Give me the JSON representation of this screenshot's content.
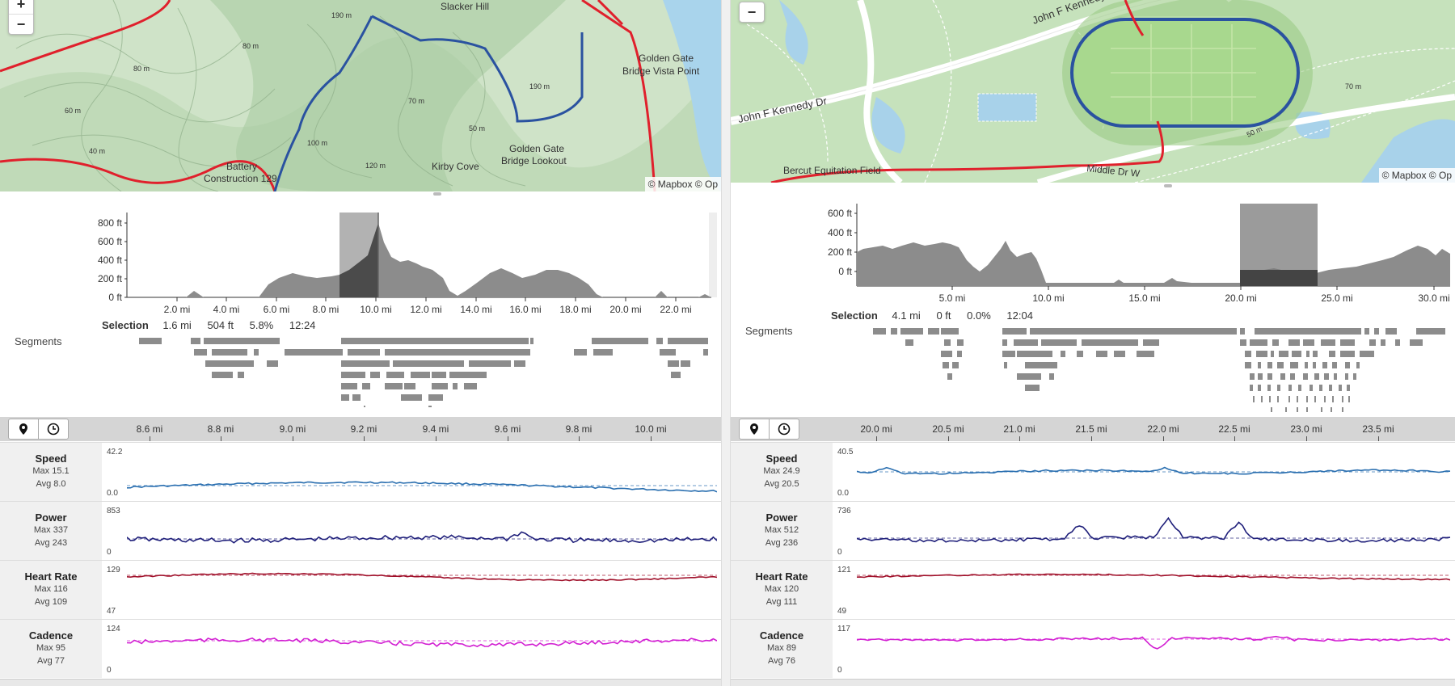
{
  "left": {
    "map": {
      "zoom_in": "+",
      "zoom_out": "−",
      "labels": [
        "Slacker Hill",
        "Golden Gate",
        "Bridge Vista Point",
        "Golden Gate",
        "Bridge Lookout",
        "Kirby Cove",
        "Battery",
        "Construction 129"
      ],
      "contours": [
        "190 m",
        "80 m",
        "60 m",
        "120 m",
        "190 m",
        "70 m",
        "50 m",
        "40 m",
        "80 m",
        "100 m"
      ],
      "attribution": "© Mapbox © Op"
    },
    "elevation": {
      "y_ticks": [
        "800 ft",
        "600 ft",
        "400 ft",
        "200 ft",
        "0 ft"
      ],
      "x_ticks": [
        "2.0 mi",
        "4.0 mi",
        "6.0 mi",
        "8.0 mi",
        "10.0 mi",
        "12.0 mi",
        "14.0 mi",
        "16.0 mi",
        "18.0 mi",
        "20.0 mi",
        "22.0 mi"
      ]
    },
    "selection": {
      "label": "Selection",
      "distance": "1.6 mi",
      "elevation": "504 ft",
      "grade": "5.8%",
      "time": "12:24"
    },
    "segments_label": "Segments",
    "streams_axis": [
      "8.6 mi",
      "8.8 mi",
      "9.0 mi",
      "9.2 mi",
      "9.4 mi",
      "9.6 mi",
      "9.8 mi",
      "10.0 mi"
    ],
    "streams": [
      {
        "name": "Speed",
        "max": "Max 15.1",
        "avg": "Avg 8.0",
        "top": "42.2",
        "bottom": "0.0",
        "color": "#2a6fb0"
      },
      {
        "name": "Power",
        "max": "Max 337",
        "avg": "Avg 243",
        "top": "853",
        "bottom": "0",
        "color": "#1f1f7a"
      },
      {
        "name": "Heart Rate",
        "max": "Max 116",
        "avg": "Avg 109",
        "top": "129",
        "bottom": "47",
        "color": "#a0102a"
      },
      {
        "name": "Cadence",
        "max": "Max 95",
        "avg": "Avg 77",
        "top": "124",
        "bottom": "0",
        "color": "#d21ed2"
      }
    ]
  },
  "right": {
    "map": {
      "zoom_out": "−",
      "labels": [
        "John F Kennedy Dr",
        "John F Kennedy Dr",
        "Bercut Equitation Field",
        "Middle Dr W"
      ],
      "contours": [
        "50 m",
        "70 m"
      ],
      "attribution": "© Mapbox © Op"
    },
    "elevation": {
      "y_ticks": [
        "600 ft",
        "400 ft",
        "200 ft",
        "0 ft"
      ],
      "x_ticks": [
        "5.0 mi",
        "10.0 mi",
        "15.0 mi",
        "20.0 mi",
        "25.0 mi",
        "30.0 mi"
      ]
    },
    "selection": {
      "label": "Selection",
      "distance": "4.1 mi",
      "elevation": "0 ft",
      "grade": "0.0%",
      "time": "12:04"
    },
    "segments_label": "Segments",
    "streams_axis": [
      "20.0 mi",
      "20.5 mi",
      "21.0 mi",
      "21.5 mi",
      "22.0 mi",
      "22.5 mi",
      "23.0 mi",
      "23.5 mi"
    ],
    "streams": [
      {
        "name": "Speed",
        "max": "Max 24.9",
        "avg": "Avg 20.5",
        "top": "40.5",
        "bottom": "0.0",
        "color": "#2a6fb0"
      },
      {
        "name": "Power",
        "max": "Max 512",
        "avg": "Avg 236",
        "top": "736",
        "bottom": "0",
        "color": "#1f1f7a"
      },
      {
        "name": "Heart Rate",
        "max": "Max 120",
        "avg": "Avg 111",
        "top": "121",
        "bottom": "49",
        "color": "#a0102a"
      },
      {
        "name": "Cadence",
        "max": "Max 89",
        "avg": "Avg 76",
        "top": "117",
        "bottom": "0",
        "color": "#d21ed2"
      }
    ]
  },
  "colors": {
    "route_blue": "#2a52a0",
    "road_red": "#e0202c",
    "elevation_fill": "#8c8c8c",
    "selection_fill": "#555555",
    "segment_bar": "#8c8c8c"
  },
  "icons": [
    "map-pin-icon",
    "clock-icon"
  ]
}
